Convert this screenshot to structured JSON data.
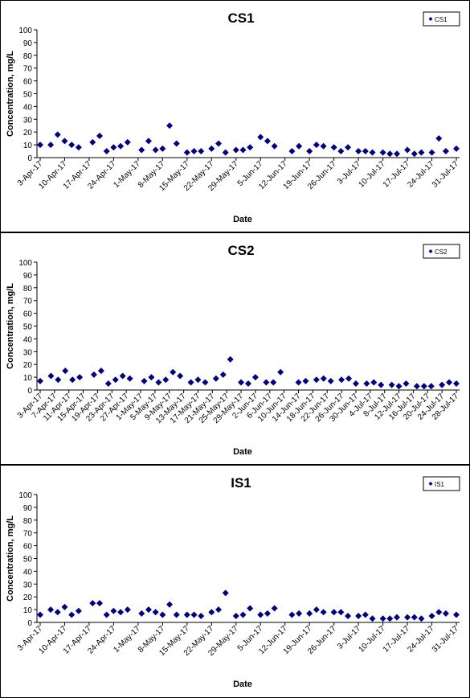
{
  "chart_data": [
    {
      "type": "scatter",
      "title": "CS1",
      "xlabel": "Date",
      "ylabel": "Concentration, mg/L",
      "x": [
        "2017-04-03",
        "2017-04-06",
        "2017-04-08",
        "2017-04-10",
        "2017-04-12",
        "2017-04-14",
        "2017-04-18",
        "2017-04-20",
        "2017-04-22",
        "2017-04-24",
        "2017-04-26",
        "2017-04-28",
        "2017-05-02",
        "2017-05-04",
        "2017-05-06",
        "2017-05-08",
        "2017-05-10",
        "2017-05-12",
        "2017-05-15",
        "2017-05-17",
        "2017-05-19",
        "2017-05-22",
        "2017-05-24",
        "2017-05-26",
        "2017-05-29",
        "2017-05-31",
        "2017-06-02",
        "2017-06-05",
        "2017-06-07",
        "2017-06-09",
        "2017-06-14",
        "2017-06-16",
        "2017-06-19",
        "2017-06-21",
        "2017-06-23",
        "2017-06-26",
        "2017-06-28",
        "2017-06-30",
        "2017-07-03",
        "2017-07-05",
        "2017-07-07",
        "2017-07-10",
        "2017-07-12",
        "2017-07-14",
        "2017-07-17",
        "2017-07-19",
        "2017-07-21",
        "2017-07-24",
        "2017-07-26",
        "2017-07-28",
        "2017-07-31"
      ],
      "series": [
        {
          "name": "CS1",
          "color": "#000080",
          "values": [
            10,
            10,
            18,
            13,
            10,
            8,
            12,
            17,
            5,
            8,
            9,
            12,
            6,
            13,
            6,
            7,
            25,
            11,
            4,
            5,
            5,
            7,
            11,
            4,
            6,
            6,
            8,
            16,
            13,
            9,
            5,
            9,
            5,
            10,
            9,
            8,
            5,
            8,
            5,
            5,
            4,
            4,
            3,
            3,
            6,
            3,
            4,
            4,
            15,
            5,
            7
          ]
        }
      ],
      "xlim": [
        "2017-04-03",
        "2017-07-31"
      ],
      "xticks": [
        {
          "value": "2017-04-03",
          "label": "3-Apr-17"
        },
        {
          "value": "2017-04-10",
          "label": "10-Apr-17"
        },
        {
          "value": "2017-04-17",
          "label": "17-Apr-17"
        },
        {
          "value": "2017-04-24",
          "label": "24-Apr-17"
        },
        {
          "value": "2017-05-01",
          "label": "1-May-17"
        },
        {
          "value": "2017-05-08",
          "label": "8-May-17"
        },
        {
          "value": "2017-05-15",
          "label": "15-May-17"
        },
        {
          "value": "2017-05-22",
          "label": "22-May-17"
        },
        {
          "value": "2017-05-29",
          "label": "29-May-17"
        },
        {
          "value": "2017-06-05",
          "label": "5-Jun-17"
        },
        {
          "value": "2017-06-12",
          "label": "12-Jun-17"
        },
        {
          "value": "2017-06-19",
          "label": "19-Jun-17"
        },
        {
          "value": "2017-06-26",
          "label": "26-Jun-17"
        },
        {
          "value": "2017-07-03",
          "label": "3-Jul-17"
        },
        {
          "value": "2017-07-10",
          "label": "10-Jul-17"
        },
        {
          "value": "2017-07-17",
          "label": "17-Jul-17"
        },
        {
          "value": "2017-07-24",
          "label": "24-Jul-17"
        },
        {
          "value": "2017-07-31",
          "label": "31-Jul-17"
        }
      ],
      "ylim": [
        0,
        100
      ],
      "yticks": [
        0,
        10,
        20,
        30,
        40,
        50,
        60,
        70,
        80,
        90,
        100
      ],
      "legend": "top-right"
    },
    {
      "type": "scatter",
      "title": "CS2",
      "xlabel": "Date",
      "ylabel": "Concentration, mg/L",
      "x": [
        "2017-04-03",
        "2017-04-06",
        "2017-04-08",
        "2017-04-10",
        "2017-04-12",
        "2017-04-14",
        "2017-04-18",
        "2017-04-20",
        "2017-04-22",
        "2017-04-24",
        "2017-04-26",
        "2017-04-28",
        "2017-05-02",
        "2017-05-04",
        "2017-05-06",
        "2017-05-08",
        "2017-05-10",
        "2017-05-12",
        "2017-05-15",
        "2017-05-17",
        "2017-05-19",
        "2017-05-22",
        "2017-05-24",
        "2017-05-26",
        "2017-05-29",
        "2017-05-31",
        "2017-06-02",
        "2017-06-05",
        "2017-06-07",
        "2017-06-09",
        "2017-06-14",
        "2017-06-16",
        "2017-06-19",
        "2017-06-21",
        "2017-06-23",
        "2017-06-26",
        "2017-06-28",
        "2017-06-30",
        "2017-07-03",
        "2017-07-05",
        "2017-07-07",
        "2017-07-10",
        "2017-07-12",
        "2017-07-14",
        "2017-07-17",
        "2017-07-19",
        "2017-07-21",
        "2017-07-24",
        "2017-07-26",
        "2017-07-28"
      ],
      "series": [
        {
          "name": "CS2",
          "color": "#000080",
          "values": [
            7,
            11,
            8,
            15,
            8,
            10,
            12,
            15,
            5,
            8,
            11,
            9,
            7,
            10,
            6,
            8,
            14,
            11,
            6,
            8,
            6,
            9,
            12,
            24,
            6,
            5,
            10,
            6,
            6,
            14,
            6,
            7,
            8,
            9,
            7,
            8,
            9,
            5,
            5,
            6,
            4,
            4,
            3,
            5,
            3,
            3,
            3,
            4,
            6,
            5
          ]
        }
      ],
      "xlim": [
        "2017-04-03",
        "2017-07-28"
      ],
      "xticks": [
        {
          "value": "2017-04-03",
          "label": "3-Apr-17"
        },
        {
          "value": "2017-04-07",
          "label": "7-Apr-17"
        },
        {
          "value": "2017-04-11",
          "label": "11-Apr-17"
        },
        {
          "value": "2017-04-15",
          "label": "15-Apr-17"
        },
        {
          "value": "2017-04-19",
          "label": "19-Apr-17"
        },
        {
          "value": "2017-04-23",
          "label": "23-Apr-17"
        },
        {
          "value": "2017-04-27",
          "label": "27-Apr-17"
        },
        {
          "value": "2017-05-01",
          "label": "1-May-17"
        },
        {
          "value": "2017-05-05",
          "label": "5-May-17"
        },
        {
          "value": "2017-05-09",
          "label": "9-May-17"
        },
        {
          "value": "2017-05-13",
          "label": "13-May-17"
        },
        {
          "value": "2017-05-17",
          "label": "17-May-17"
        },
        {
          "value": "2017-05-21",
          "label": "21-May-17"
        },
        {
          "value": "2017-05-25",
          "label": "25-May-17"
        },
        {
          "value": "2017-05-29",
          "label": "29-May-17"
        },
        {
          "value": "2017-06-02",
          "label": "2-Jun-17"
        },
        {
          "value": "2017-06-06",
          "label": "6-Jun-17"
        },
        {
          "value": "2017-06-10",
          "label": "10-Jun-17"
        },
        {
          "value": "2017-06-14",
          "label": "14-Jun-17"
        },
        {
          "value": "2017-06-18",
          "label": "18-Jun-17"
        },
        {
          "value": "2017-06-22",
          "label": "22-Jun-17"
        },
        {
          "value": "2017-06-26",
          "label": "26-Jun-17"
        },
        {
          "value": "2017-06-30",
          "label": "30-Jun-17"
        },
        {
          "value": "2017-07-04",
          "label": "4-Jul-17"
        },
        {
          "value": "2017-07-08",
          "label": "8-Jul-17"
        },
        {
          "value": "2017-07-12",
          "label": "12-Jul-17"
        },
        {
          "value": "2017-07-16",
          "label": "16-Jul-17"
        },
        {
          "value": "2017-07-20",
          "label": "20-Jul-17"
        },
        {
          "value": "2017-07-24",
          "label": "24-Jul-17"
        },
        {
          "value": "2017-07-28",
          "label": "28-Jul-17"
        }
      ],
      "ylim": [
        0,
        100
      ],
      "yticks": [
        0,
        10,
        20,
        30,
        40,
        50,
        60,
        70,
        80,
        90,
        100
      ],
      "legend": "top-right"
    },
    {
      "type": "scatter",
      "title": "IS1",
      "xlabel": "Date",
      "ylabel": "Concentration, mg/L",
      "x": [
        "2017-04-03",
        "2017-04-06",
        "2017-04-08",
        "2017-04-10",
        "2017-04-12",
        "2017-04-14",
        "2017-04-18",
        "2017-04-20",
        "2017-04-22",
        "2017-04-24",
        "2017-04-26",
        "2017-04-28",
        "2017-05-02",
        "2017-05-04",
        "2017-05-06",
        "2017-05-08",
        "2017-05-10",
        "2017-05-12",
        "2017-05-15",
        "2017-05-17",
        "2017-05-19",
        "2017-05-22",
        "2017-05-24",
        "2017-05-26",
        "2017-05-29",
        "2017-05-31",
        "2017-06-02",
        "2017-06-05",
        "2017-06-07",
        "2017-06-09",
        "2017-06-14",
        "2017-06-16",
        "2017-06-19",
        "2017-06-21",
        "2017-06-23",
        "2017-06-26",
        "2017-06-28",
        "2017-06-30",
        "2017-07-03",
        "2017-07-05",
        "2017-07-07",
        "2017-07-10",
        "2017-07-12",
        "2017-07-14",
        "2017-07-17",
        "2017-07-19",
        "2017-07-21",
        "2017-07-24",
        "2017-07-26",
        "2017-07-28",
        "2017-07-31"
      ],
      "series": [
        {
          "name": "IS1",
          "color": "#000080",
          "values": [
            6,
            10,
            8,
            12,
            6,
            9,
            15,
            15,
            6,
            9,
            8,
            10,
            7,
            10,
            8,
            6,
            14,
            6,
            6,
            6,
            5,
            8,
            10,
            23,
            5,
            6,
            11,
            6,
            7,
            11,
            6,
            7,
            7,
            10,
            8,
            8,
            8,
            5,
            5,
            6,
            3,
            3,
            3,
            4,
            4,
            4,
            3,
            5,
            8,
            7,
            6
          ]
        }
      ],
      "xlim": [
        "2017-04-03",
        "2017-07-31"
      ],
      "xticks": [
        {
          "value": "2017-04-03",
          "label": "3-Apr-17"
        },
        {
          "value": "2017-04-10",
          "label": "10-Apr-17"
        },
        {
          "value": "2017-04-17",
          "label": "17-Apr-17"
        },
        {
          "value": "2017-04-24",
          "label": "24-Apr-17"
        },
        {
          "value": "2017-05-01",
          "label": "1-May-17"
        },
        {
          "value": "2017-05-08",
          "label": "8-May-17"
        },
        {
          "value": "2017-05-15",
          "label": "15-May-17"
        },
        {
          "value": "2017-05-22",
          "label": "22-May-17"
        },
        {
          "value": "2017-05-29",
          "label": "29-May-17"
        },
        {
          "value": "2017-06-05",
          "label": "5-Jun-17"
        },
        {
          "value": "2017-06-12",
          "label": "12-Jun-17"
        },
        {
          "value": "2017-06-19",
          "label": "19-Jun-17"
        },
        {
          "value": "2017-06-26",
          "label": "26-Jun-17"
        },
        {
          "value": "2017-07-03",
          "label": "3-Jul-17"
        },
        {
          "value": "2017-07-10",
          "label": "10-Jul-17"
        },
        {
          "value": "2017-07-17",
          "label": "17-Jul-17"
        },
        {
          "value": "2017-07-24",
          "label": "24-Jul-17"
        },
        {
          "value": "2017-07-31",
          "label": "31-Jul-17"
        }
      ],
      "ylim": [
        0,
        100
      ],
      "yticks": [
        0,
        10,
        20,
        30,
        40,
        50,
        60,
        70,
        80,
        90,
        100
      ],
      "legend": "top-right"
    }
  ]
}
